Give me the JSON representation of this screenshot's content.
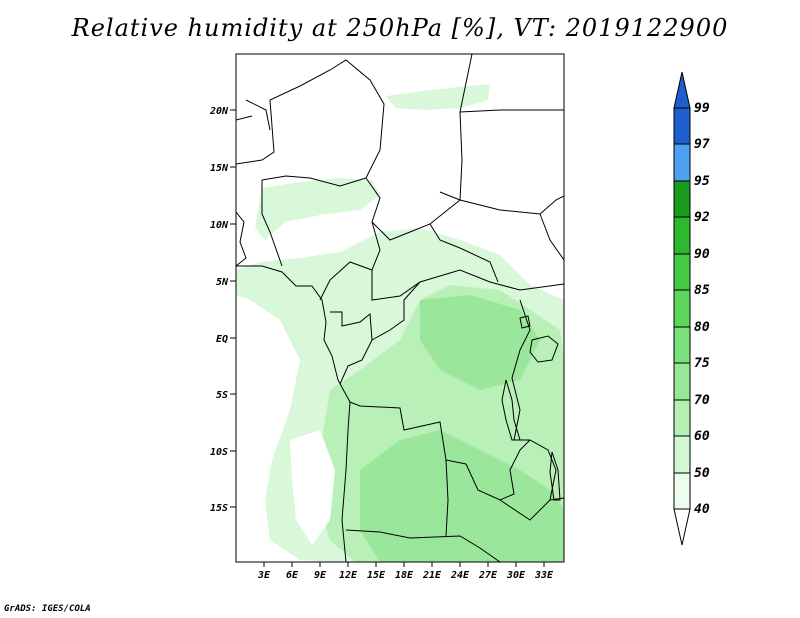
{
  "title": "Relative humidity at 250hPa [%], VT: 2019122900",
  "credit": "GrADS: IGES/COLA",
  "map": {
    "lat_ticks": [
      "20N",
      "15N",
      "10N",
      "5N",
      "EQ",
      "5S",
      "10S",
      "15S"
    ],
    "lon_ticks": [
      "3E",
      "6E",
      "9E",
      "12E",
      "15E",
      "18E",
      "21E",
      "24E",
      "27E",
      "30E",
      "33E"
    ],
    "lon_range": [
      0,
      35
    ],
    "lat_range": [
      -20,
      25
    ],
    "variable": "relative humidity",
    "units": "%",
    "level": "250hPa",
    "valid_time": "2019122900"
  },
  "colorbar": {
    "labels": [
      "99",
      "97",
      "95",
      "92",
      "90",
      "85",
      "80",
      "75",
      "70",
      "60",
      "50",
      "40"
    ],
    "colors": [
      "#1e5fd0",
      "#2b78e4",
      "#4ea1f0",
      "#1a9a1a",
      "#2eb82e",
      "#44c944",
      "#5cd65c",
      "#7ae07a",
      "#96e896",
      "#b4f0b4",
      "#d2f7d2",
      "#eefcee"
    ]
  },
  "colors": {
    "green_light": "#d9f8d9",
    "green_mid": "#b8f0b8",
    "green_dark": "#9ae69a"
  }
}
